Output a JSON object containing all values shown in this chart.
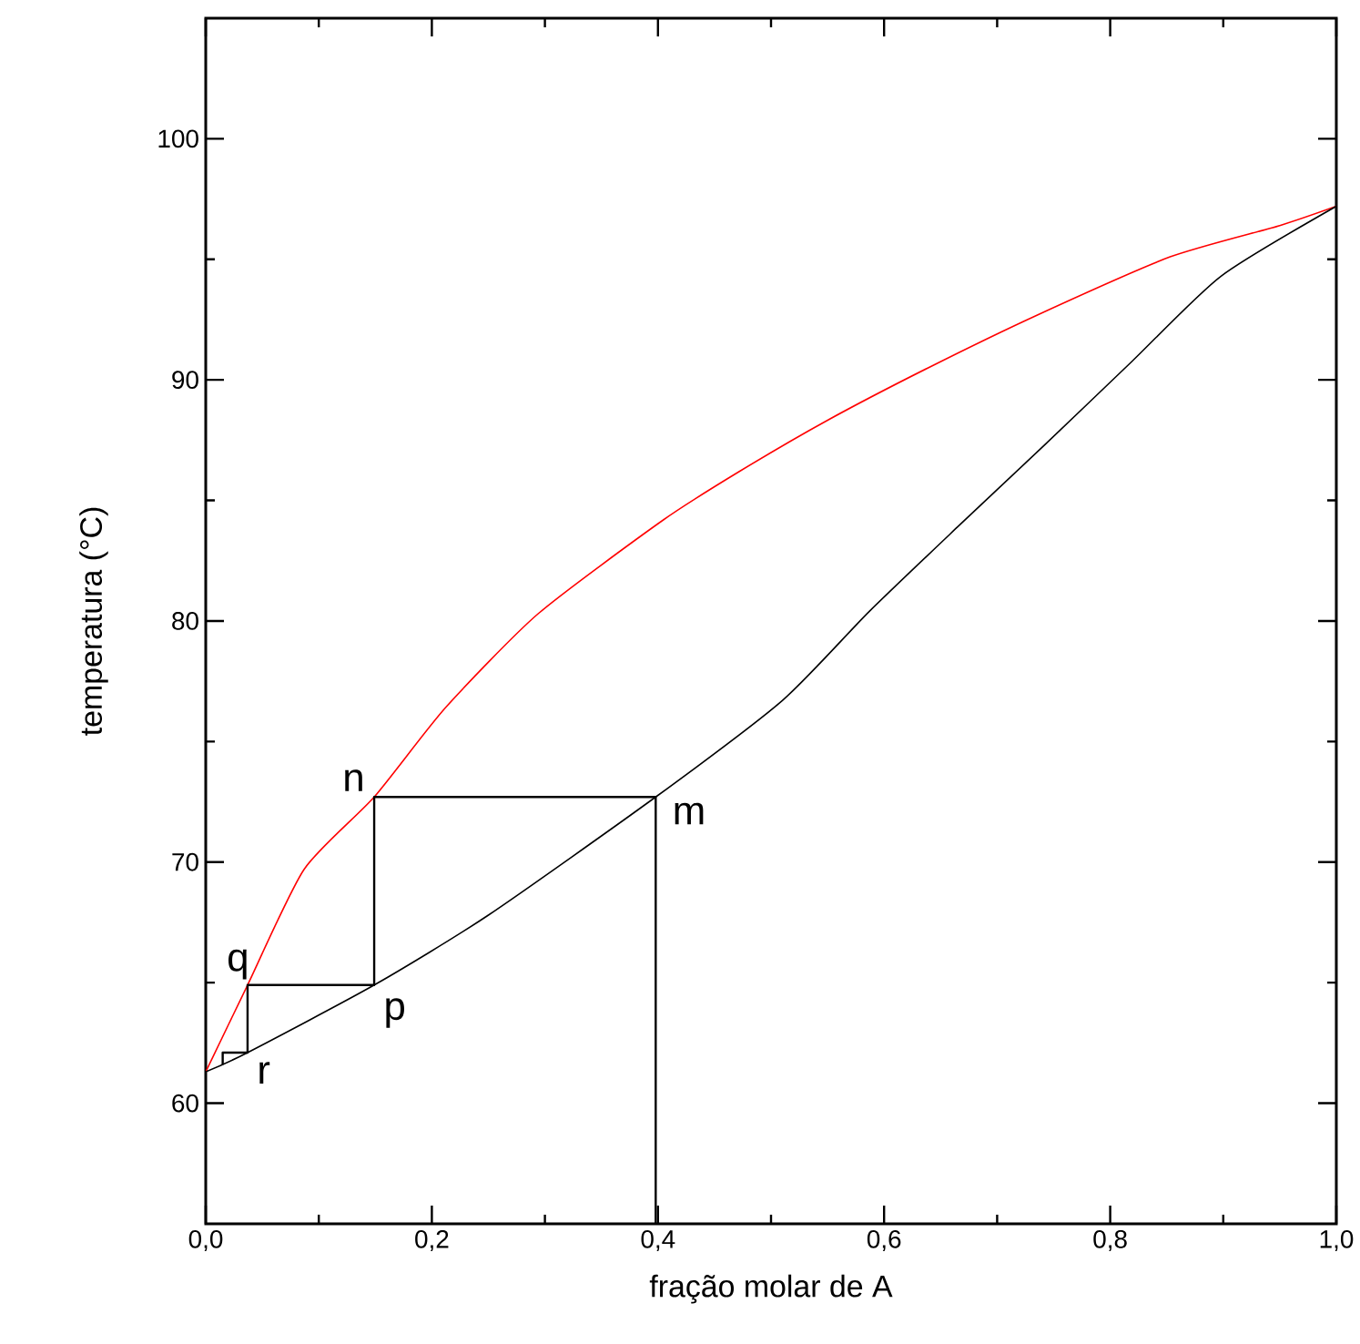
{
  "chart_data": {
    "type": "line",
    "xlabel": "fração molar de A",
    "ylabel": "temperatura (°C)",
    "xlim": [
      0,
      1
    ],
    "ylim": [
      55,
      105
    ],
    "xticks": [
      {
        "value": 0,
        "label": "0,0"
      },
      {
        "value": 0.2,
        "label": "0,2"
      },
      {
        "value": 0.4,
        "label": "0,4"
      },
      {
        "value": 0.6,
        "label": "0,6"
      },
      {
        "value": 0.8,
        "label": "0,8"
      },
      {
        "value": 1,
        "label": "1,0"
      }
    ],
    "yticks": [
      60,
      70,
      80,
      90,
      100
    ],
    "grid": false,
    "marker": "none",
    "line_style": "solid",
    "series": [
      {
        "color": "#ff0000",
        "x": [
          0,
          0.037,
          0.087,
          0.149,
          0.212,
          0.294,
          0.405,
          0.472,
          0.549,
          0.639,
          0.736,
          0.853,
          0.95,
          1
        ],
        "values": [
          61.3,
          64.9,
          69.7,
          72.7,
          76.4,
          80.3,
          84.2,
          86.2,
          88.3,
          90.5,
          92.7,
          95.1,
          96.4,
          97.2
        ]
      },
      {
        "color": "#000000",
        "x": [
          0,
          0.037,
          0.149,
          0.25,
          0.398,
          0.51,
          0.587,
          0.665,
          0.742,
          0.82,
          0.898,
          1
        ],
        "values": [
          61.3,
          62.1,
          64.9,
          67.8,
          72.7,
          76.7,
          80.4,
          83.9,
          87.3,
          90.8,
          94.3,
          97.2
        ]
      },
      {
        "color": "#000000",
        "x": [
          0.398,
          0.398,
          0.149,
          0.149,
          0.037,
          0.037,
          0.015,
          0.015
        ],
        "values": [
          55,
          72.7,
          72.7,
          64.9,
          64.9,
          62.1,
          62.1,
          61.6
        ]
      }
    ],
    "annotations": [
      {
        "text": "n",
        "x": 0.149,
        "y": 72.7
      },
      {
        "text": "m",
        "x": 0.398,
        "y": 72.7
      },
      {
        "text": "p",
        "x": 0.149,
        "y": 64.9
      },
      {
        "text": "q",
        "x": 0.037,
        "y": 64.9
      },
      {
        "text": "r",
        "x": 0.037,
        "y": 62.1
      }
    ]
  }
}
